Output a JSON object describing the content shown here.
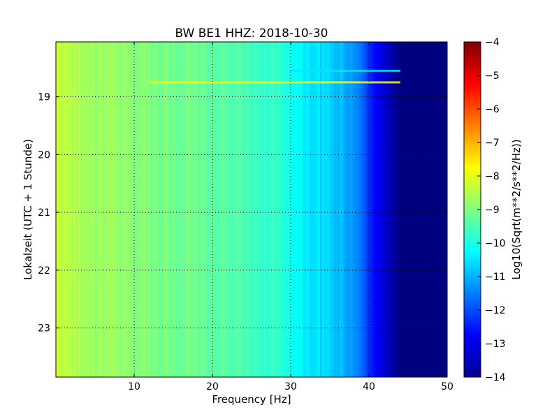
{
  "chart_data": {
    "type": "heatmap",
    "title": "BW BE1 HHZ: 2018-10-30",
    "xlabel": "Frequency [Hz]",
    "ylabel": "Lokalzeit (UTC + 1 Stunde)",
    "xlim": [
      0,
      50
    ],
    "ylim": [
      18.05,
      23.85
    ],
    "x_ticks": [
      10,
      20,
      30,
      40,
      50
    ],
    "y_ticks": [
      19,
      20,
      21,
      22,
      23
    ],
    "grid": true,
    "colormap": "jet",
    "colorbar": {
      "label": "Log10(Sqrt(m**2/s**2/Hz))",
      "range": [
        -14,
        -4
      ],
      "ticks": [
        -4,
        -5,
        -6,
        -7,
        -8,
        -9,
        -10,
        -11,
        -12,
        -13,
        -14
      ]
    },
    "column_profile": {
      "frequency_hz": [
        0,
        2,
        5,
        10,
        15,
        20,
        25,
        28,
        30,
        31,
        33,
        35,
        37,
        39,
        40,
        41,
        42,
        43,
        44,
        46,
        50
      ],
      "log10_amplitude": [
        -8.2,
        -8.5,
        -8.7,
        -8.9,
        -9.1,
        -9.3,
        -9.6,
        -9.8,
        -10.0,
        -10.3,
        -10.5,
        -10.7,
        -11.0,
        -11.6,
        -12.3,
        -12.8,
        -13.2,
        -13.6,
        -14,
        -14,
        -14
      ]
    },
    "features": [
      {
        "type": "horizontal_band",
        "time": 18.75,
        "freq_range": [
          12,
          44
        ],
        "log10_amplitude": -7.9
      },
      {
        "type": "horizontal_band",
        "time": 18.55,
        "freq_range": [
          30,
          44
        ],
        "log10_amplitude": -10.5
      }
    ]
  }
}
